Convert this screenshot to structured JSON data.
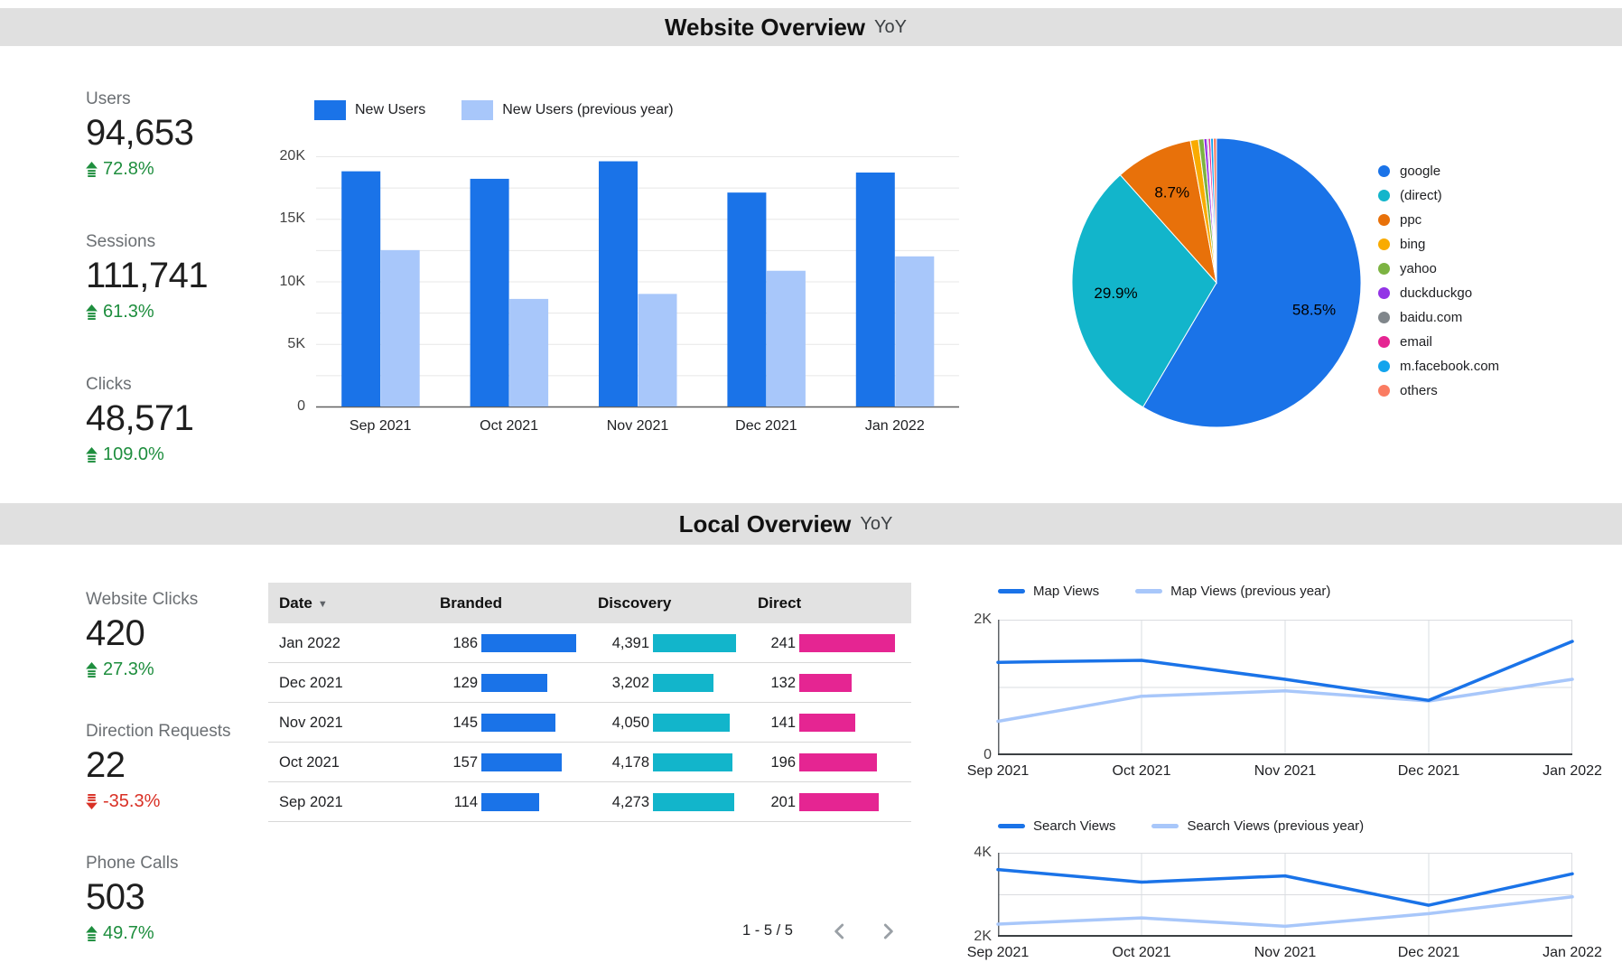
{
  "website_section": {
    "title": "Website Overview",
    "subtitle": "YoY",
    "scorecards": [
      {
        "label": "Users",
        "value": "94,653",
        "delta": "72.8%",
        "direction": "up"
      },
      {
        "label": "Sessions",
        "value": "111,741",
        "delta": "61.3%",
        "direction": "up"
      },
      {
        "label": "Clicks",
        "value": "48,571",
        "delta": "109.0%",
        "direction": "up"
      }
    ]
  },
  "local_section": {
    "title": "Local Overview",
    "subtitle": "YoY",
    "scorecards": [
      {
        "label": "Website Clicks",
        "value": "420",
        "delta": "27.3%",
        "direction": "up"
      },
      {
        "label": "Direction Requests",
        "value": "22",
        "delta": "-35.3%",
        "direction": "down"
      },
      {
        "label": "Phone Calls",
        "value": "503",
        "delta": "49.7%",
        "direction": "up"
      }
    ],
    "pagination": {
      "label": "1 - 5 / 5"
    }
  },
  "colors": {
    "accent_blue": "#1A73E8",
    "light_blue": "#A8C7FA",
    "teal": "#12B5CB",
    "magenta": "#E52592",
    "positive_green": "#1E8E3E",
    "negative_red": "#D93025",
    "band_gray": "#E0E0E0",
    "grid_gray": "#E7E7E7"
  },
  "chart_data": [
    {
      "id": "new_users_bar",
      "type": "bar",
      "categories": [
        "Sep 2021",
        "Oct 2021",
        "Nov 2021",
        "Dec 2021",
        "Jan 2022"
      ],
      "series": [
        {
          "name": "New Users",
          "color": "#1A73E8",
          "values": [
            18800,
            18200,
            19600,
            17100,
            18700
          ]
        },
        {
          "name": "New Users (previous year)",
          "color": "#A8C7FA",
          "values": [
            12500,
            8600,
            9000,
            10850,
            12000
          ]
        }
      ],
      "ylim": [
        0,
        20000
      ],
      "yticks": [
        0,
        5000,
        10000,
        15000,
        20000
      ],
      "ytick_labels": [
        "0",
        "5K",
        "10K",
        "15K",
        "20K"
      ],
      "minor_grid_step": 2500,
      "legend_position": "top",
      "grid": true
    },
    {
      "id": "traffic_pie",
      "type": "pie",
      "labels": [
        "google",
        "(direct)",
        "ppc",
        "bing",
        "yahoo",
        "duckduckgo",
        "baidu.com",
        "email",
        "m.facebook.com",
        "others"
      ],
      "values": [
        58.5,
        29.9,
        8.7,
        0.9,
        0.6,
        0.35,
        0.15,
        0.25,
        0.3,
        0.35
      ],
      "colors": [
        "#1A73E8",
        "#12B5CB",
        "#E8710A",
        "#F9AB00",
        "#7CB342",
        "#9334E6",
        "#80868B",
        "#E52592",
        "#12A4ED",
        "#FA7C62"
      ],
      "percent_labels": [
        "58.5%",
        "29.9%",
        "8.7%"
      ],
      "legend_position": "right"
    },
    {
      "id": "local_table",
      "type": "table",
      "columns": [
        "Date",
        "Branded",
        "Discovery",
        "Direct"
      ],
      "sorted_by": "Date",
      "sort_direction": "desc",
      "bar_colors": {
        "branded": "#1A73E8",
        "discovery": "#12B5CB",
        "direct": "#E52592"
      },
      "rows": [
        {
          "date": "Jan 2022",
          "branded": {
            "value": 186,
            "display": "186"
          },
          "discovery": {
            "value": 4391,
            "display": "4,391"
          },
          "direct": {
            "value": 241,
            "display": "241"
          }
        },
        {
          "date": "Dec 2021",
          "branded": {
            "value": 129,
            "display": "129"
          },
          "discovery": {
            "value": 3202,
            "display": "3,202"
          },
          "direct": {
            "value": 132,
            "display": "132"
          }
        },
        {
          "date": "Nov 2021",
          "branded": {
            "value": 145,
            "display": "145"
          },
          "discovery": {
            "value": 4050,
            "display": "4,050"
          },
          "direct": {
            "value": 141,
            "display": "141"
          }
        },
        {
          "date": "Oct 2021",
          "branded": {
            "value": 157,
            "display": "157"
          },
          "discovery": {
            "value": 4178,
            "display": "4,178"
          },
          "direct": {
            "value": 196,
            "display": "196"
          }
        },
        {
          "date": "Sep 2021",
          "branded": {
            "value": 114,
            "display": "114"
          },
          "discovery": {
            "value": 4273,
            "display": "4,273"
          },
          "direct": {
            "value": 201,
            "display": "201"
          }
        }
      ]
    },
    {
      "id": "map_views_line",
      "type": "line",
      "x": [
        "Sep 2021",
        "Oct 2021",
        "Nov 2021",
        "Dec 2021",
        "Jan 2022"
      ],
      "series": [
        {
          "name": "Map Views",
          "color": "#1A73E8",
          "values": [
            1370,
            1400,
            1120,
            810,
            1680
          ]
        },
        {
          "name": "Map Views (previous year)",
          "color": "#A8C7FA",
          "values": [
            500,
            870,
            950,
            800,
            1120
          ]
        }
      ],
      "ylim": [
        0,
        2000
      ],
      "yticks": [
        0,
        2000
      ],
      "ytick_labels": [
        "0",
        "2K"
      ],
      "mid_gridlines": [
        1000
      ],
      "legend_position": "top",
      "grid": true
    },
    {
      "id": "search_views_line",
      "type": "line",
      "x": [
        "Sep 2021",
        "Oct 2021",
        "Nov 2021",
        "Dec 2021",
        "Jan 2022"
      ],
      "series": [
        {
          "name": "Search Views",
          "color": "#1A73E8",
          "values": [
            3600,
            3300,
            3450,
            2750,
            3500
          ]
        },
        {
          "name": "Search Views (previous year)",
          "color": "#A8C7FA",
          "values": [
            2300,
            2450,
            2250,
            2550,
            2950
          ]
        }
      ],
      "ylim": [
        2000,
        4000
      ],
      "yticks": [
        2000,
        4000
      ],
      "ytick_labels": [
        "2K",
        "4K"
      ],
      "mid_gridlines": [
        3000
      ],
      "legend_position": "top",
      "grid": true
    }
  ]
}
